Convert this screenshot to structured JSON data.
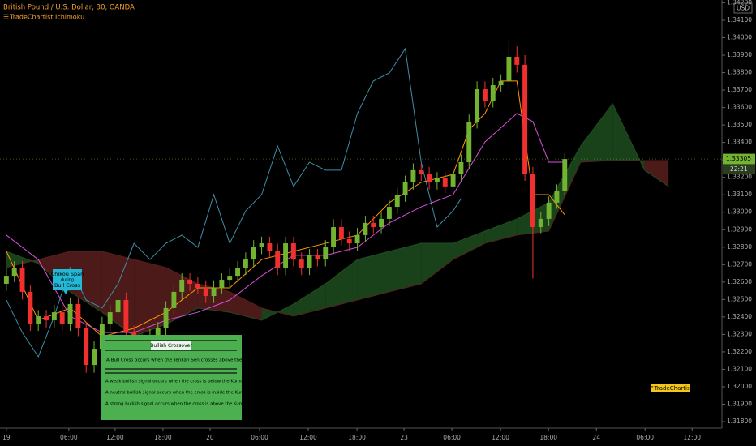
{
  "chart_data": {
    "type": "candlestick",
    "title": "British Pound / U.S. Dollar, 30, OANDA",
    "indicator": "TradeChartist Ichimoku",
    "currency": "USD",
    "up_color": "#73b332",
    "down_color": "#f22f2f",
    "xlim": [
      -0.8,
      89.7
    ],
    "ylim": [
      1.31763,
      1.34216
    ],
    "grid": false,
    "xticks": [
      {
        "value": 0,
        "label": "19"
      },
      {
        "value": 7.83,
        "label": "06:00"
      },
      {
        "value": 13.63,
        "label": "12:00"
      },
      {
        "value": 19.63,
        "label": "18:00"
      },
      {
        "value": 25.53,
        "label": "20"
      },
      {
        "value": 31.74,
        "label": "06:00"
      },
      {
        "value": 37.84,
        "label": "12:00"
      },
      {
        "value": 43.95,
        "label": "18:00"
      },
      {
        "value": 49.85,
        "label": "23"
      },
      {
        "value": 55.85,
        "label": "06:00"
      },
      {
        "value": 61.95,
        "label": "12:00"
      },
      {
        "value": 67.96,
        "label": "18:00"
      },
      {
        "value": 73.96,
        "label": "24"
      },
      {
        "value": 80.06,
        "label": "06:00"
      },
      {
        "value": 85.96,
        "label": "12:00"
      }
    ],
    "yticks": [
      {
        "value": 1.318,
        "label": "1.31800"
      },
      {
        "value": 1.319,
        "label": "1.31900"
      },
      {
        "value": 1.32,
        "label": "1.32000"
      },
      {
        "value": 1.321,
        "label": "1.32100"
      },
      {
        "value": 1.322,
        "label": "1.32200"
      },
      {
        "value": 1.323,
        "label": "1.32300"
      },
      {
        "value": 1.324,
        "label": "1.32400"
      },
      {
        "value": 1.325,
        "label": "1.32500"
      },
      {
        "value": 1.326,
        "label": "1.32600"
      },
      {
        "value": 1.327,
        "label": "1.32700"
      },
      {
        "value": 1.328,
        "label": "1.32800"
      },
      {
        "value": 1.329,
        "label": "1.32900"
      },
      {
        "value": 1.33,
        "label": "1.33000"
      },
      {
        "value": 1.331,
        "label": "1.33100"
      },
      {
        "value": 1.332,
        "label": "1.33200"
      },
      {
        "value": 1.333,
        "label": "1.33300"
      },
      {
        "value": 1.334,
        "label": "1.33400"
      },
      {
        "value": 1.335,
        "label": "1.33500"
      },
      {
        "value": 1.336,
        "label": "1.33600"
      },
      {
        "value": 1.337,
        "label": "1.33700"
      },
      {
        "value": 1.338,
        "label": "1.33800"
      },
      {
        "value": 1.339,
        "label": "1.33900"
      },
      {
        "value": 1.34,
        "label": "1.34000"
      },
      {
        "value": 1.341,
        "label": "1.34100"
      },
      {
        "value": 1.342,
        "label": "1.34200"
      }
    ],
    "x": [
      0,
      1,
      2,
      3,
      4,
      5,
      6,
      7,
      8,
      9,
      10,
      11,
      12,
      13,
      14,
      15,
      16,
      17,
      18,
      19,
      20,
      21,
      22,
      23,
      24,
      25,
      26,
      27,
      28,
      29,
      30,
      31,
      32,
      33,
      34,
      35,
      36,
      37,
      38,
      39,
      40,
      41,
      42,
      43,
      44,
      45,
      46,
      47,
      48,
      49,
      50,
      51,
      52,
      53,
      54,
      55,
      56,
      57,
      58,
      59,
      60,
      61,
      62,
      63,
      64,
      65,
      66,
      67,
      68,
      69,
      70
    ],
    "open": [
      1.3259,
      1.32636,
      1.32683,
      1.32544,
      1.32358,
      1.32404,
      1.32381,
      1.32427,
      1.32358,
      1.32474,
      1.32335,
      1.32125,
      1.32218,
      1.32358,
      1.32427,
      1.32497,
      1.32311,
      1.32172,
      1.32265,
      1.32288,
      1.32335,
      1.32451,
      1.32544,
      1.32613,
      1.3259,
      1.32567,
      1.3252,
      1.32567,
      1.32613,
      1.32636,
      1.32683,
      1.32729,
      1.32799,
      1.32822,
      1.32776,
      1.32683,
      1.32822,
      1.32729,
      1.32683,
      1.32753,
      1.32729,
      1.32799,
      1.32915,
      1.32846,
      1.32822,
      1.32869,
      1.32939,
      1.32915,
      1.32962,
      1.33031,
      1.33101,
      1.33171,
      1.33241,
      1.33217,
      1.33171,
      1.33194,
      1.33148,
      1.33217,
      1.33287,
      1.33519,
      1.33705,
      1.33635,
      1.33728,
      1.33752,
      1.33891,
      1.33845,
      1.33217,
      1.32915,
      1.32962,
      1.33055,
      1.33124
    ],
    "high": [
      1.3268,
      1.3272,
      1.3272,
      1.3258,
      1.3244,
      1.3244,
      1.3247,
      1.3247,
      1.3251,
      1.3251,
      1.3237,
      1.3226,
      1.324,
      1.3247,
      1.326,
      1.3254,
      1.3235,
      1.323,
      1.3233,
      1.3237,
      1.3249,
      1.3258,
      1.3265,
      1.3265,
      1.3263,
      1.3261,
      1.3261,
      1.3265,
      1.3268,
      1.3272,
      1.3277,
      1.3284,
      1.3286,
      1.3286,
      1.3282,
      1.3286,
      1.3286,
      1.3277,
      1.3279,
      1.3279,
      1.3284,
      1.3296,
      1.3296,
      1.3289,
      1.3291,
      1.3298,
      1.3298,
      1.33,
      1.3307,
      1.3314,
      1.3321,
      1.3328,
      1.3328,
      1.3326,
      1.3323,
      1.3323,
      1.3326,
      1.3333,
      1.3356,
      1.3375,
      1.3375,
      1.3377,
      1.3379,
      1.3398,
      1.3395,
      1.339,
      1.3326,
      1.33,
      1.3309,
      1.3316,
      1.3334
    ],
    "low": [
      1.3255,
      1.326,
      1.325,
      1.3232,
      1.3232,
      1.3234,
      1.3234,
      1.3232,
      1.3232,
      1.3229,
      1.3208,
      1.3208,
      1.3218,
      1.3232,
      1.3239,
      1.3227,
      1.3208,
      1.3213,
      1.3223,
      1.3225,
      1.3229,
      1.3241,
      1.325,
      1.3255,
      1.3253,
      1.3248,
      1.3248,
      1.3253,
      1.3257,
      1.326,
      1.3264,
      1.3269,
      1.3276,
      1.3274,
      1.3264,
      1.3264,
      1.3269,
      1.3264,
      1.3264,
      1.3269,
      1.3269,
      1.3276,
      1.3281,
      1.3278,
      1.3278,
      1.3283,
      1.3288,
      1.3288,
      1.3292,
      1.3299,
      1.3306,
      1.3313,
      1.3318,
      1.3313,
      1.3313,
      1.3311,
      1.3311,
      1.3318,
      1.3325,
      1.3348,
      1.336,
      1.336,
      1.3369,
      1.3371,
      1.338,
      1.3318,
      1.3262,
      1.3288,
      1.3292,
      1.3302,
      1.3309
    ],
    "close": [
      1.32636,
      1.32683,
      1.32544,
      1.32358,
      1.32404,
      1.32381,
      1.32427,
      1.32358,
      1.32474,
      1.32335,
      1.32125,
      1.32218,
      1.32358,
      1.32427,
      1.32497,
      1.32311,
      1.32172,
      1.32265,
      1.32288,
      1.32335,
      1.32451,
      1.32544,
      1.32613,
      1.3259,
      1.32567,
      1.3252,
      1.32567,
      1.32613,
      1.32636,
      1.32683,
      1.32729,
      1.32799,
      1.32822,
      1.32776,
      1.32683,
      1.32822,
      1.32729,
      1.32683,
      1.32753,
      1.32729,
      1.32799,
      1.32915,
      1.32846,
      1.32822,
      1.32869,
      1.32939,
      1.32915,
      1.32962,
      1.33031,
      1.33101,
      1.33171,
      1.33241,
      1.33217,
      1.33171,
      1.33194,
      1.33148,
      1.33217,
      1.33287,
      1.33519,
      1.33705,
      1.33635,
      1.33728,
      1.33752,
      1.33891,
      1.33845,
      1.33217,
      1.32915,
      1.32962,
      1.33055,
      1.33124,
      1.33305
    ],
    "lines": [
      {
        "color": "#3d8ea8",
        "x": [
          0,
          2,
          4,
          6,
          8,
          10,
          12,
          14,
          16,
          18,
          20,
          22,
          24,
          26,
          28,
          30,
          32,
          34,
          36,
          38,
          40,
          42,
          44,
          46,
          48,
          50,
          52,
          54,
          56,
          57
        ],
        "values": [
          1.32497,
          1.32311,
          1.32172,
          1.32404,
          1.32683,
          1.32497,
          1.32451,
          1.3259,
          1.32822,
          1.32729,
          1.32822,
          1.32869,
          1.32799,
          1.33101,
          1.32822,
          1.33008,
          1.33101,
          1.3338,
          1.33148,
          1.33287,
          1.33241,
          1.33241,
          1.33566,
          1.33752,
          1.33798,
          1.33937,
          1.33287,
          1.32915,
          1.33008,
          1.33078
        ]
      },
      {
        "color": "#ff9800",
        "x": [
          0,
          4,
          8,
          12,
          16,
          20,
          24,
          28,
          32,
          36,
          40,
          44,
          48,
          52,
          56,
          58,
          60,
          62,
          64,
          66,
          68,
          70
        ],
        "values": [
          1.32776,
          1.32381,
          1.32451,
          1.32288,
          1.32335,
          1.32427,
          1.32567,
          1.32567,
          1.32729,
          1.32776,
          1.32822,
          1.32869,
          1.33055,
          1.33171,
          1.33217,
          1.33473,
          1.33566,
          1.33752,
          1.33752,
          1.33101,
          1.33101,
          1.32985
        ]
      },
      {
        "color": "#d64fd8",
        "x": [
          0,
          4,
          8,
          12,
          16,
          20,
          24,
          28,
          32,
          36,
          40,
          44,
          48,
          52,
          56,
          60,
          64,
          66,
          68,
          70
        ],
        "values": [
          1.32869,
          1.32729,
          1.32404,
          1.32311,
          1.32311,
          1.32381,
          1.32427,
          1.32497,
          1.32636,
          1.32753,
          1.32753,
          1.32799,
          1.32939,
          1.33031,
          1.33101,
          1.33403,
          1.33566,
          1.33519,
          1.33287,
          1.33287
        ]
      }
    ],
    "cloud": {
      "up_color": "#1f4d1f",
      "down_color": "#5a1e1e",
      "x": [
        0,
        4,
        8,
        12,
        16,
        20,
        24,
        28,
        32,
        36,
        40,
        44,
        48,
        52,
        56,
        60,
        64,
        68,
        72,
        76,
        80,
        83
      ],
      "span_a": [
        1.32776,
        1.32706,
        1.32544,
        1.32427,
        1.32288,
        1.32358,
        1.32451,
        1.32427,
        1.32381,
        1.32474,
        1.3259,
        1.32729,
        1.32776,
        1.32822,
        1.32822,
        1.32892,
        1.32962,
        1.33055,
        1.3338,
        1.33622,
        1.33241,
        1.33148
      ],
      "span_b": [
        1.32683,
        1.32729,
        1.32776,
        1.32776,
        1.32729,
        1.32683,
        1.3259,
        1.32544,
        1.32451,
        1.32404,
        1.32451,
        1.32497,
        1.32544,
        1.3259,
        1.32729,
        1.32822,
        1.32869,
        1.32892,
        1.33287,
        1.33296,
        1.33296,
        1.33296
      ]
    },
    "last_price": {
      "value": 1.33305,
      "label": "1.33305"
    },
    "countdown": "22:21",
    "callout": [
      "Chikou Span",
      "during",
      "Bull Cross"
    ],
    "note_box": {
      "heading": "Bullish Crossover",
      "definition": "A Bull Cross occurs when the Tenkan Sen crosses above the Kijun Sen",
      "lines": [
        "A weak bullish signal occurs when the cross is below the Kumo Cloud.",
        "A neutral bullish signal occurs when the cross is inside the Kumo Cloud.",
        "A strong bullish signal occurs when the cross is above the Kumo Cloud."
      ]
    },
    "watermark": "™TradeChartist"
  }
}
